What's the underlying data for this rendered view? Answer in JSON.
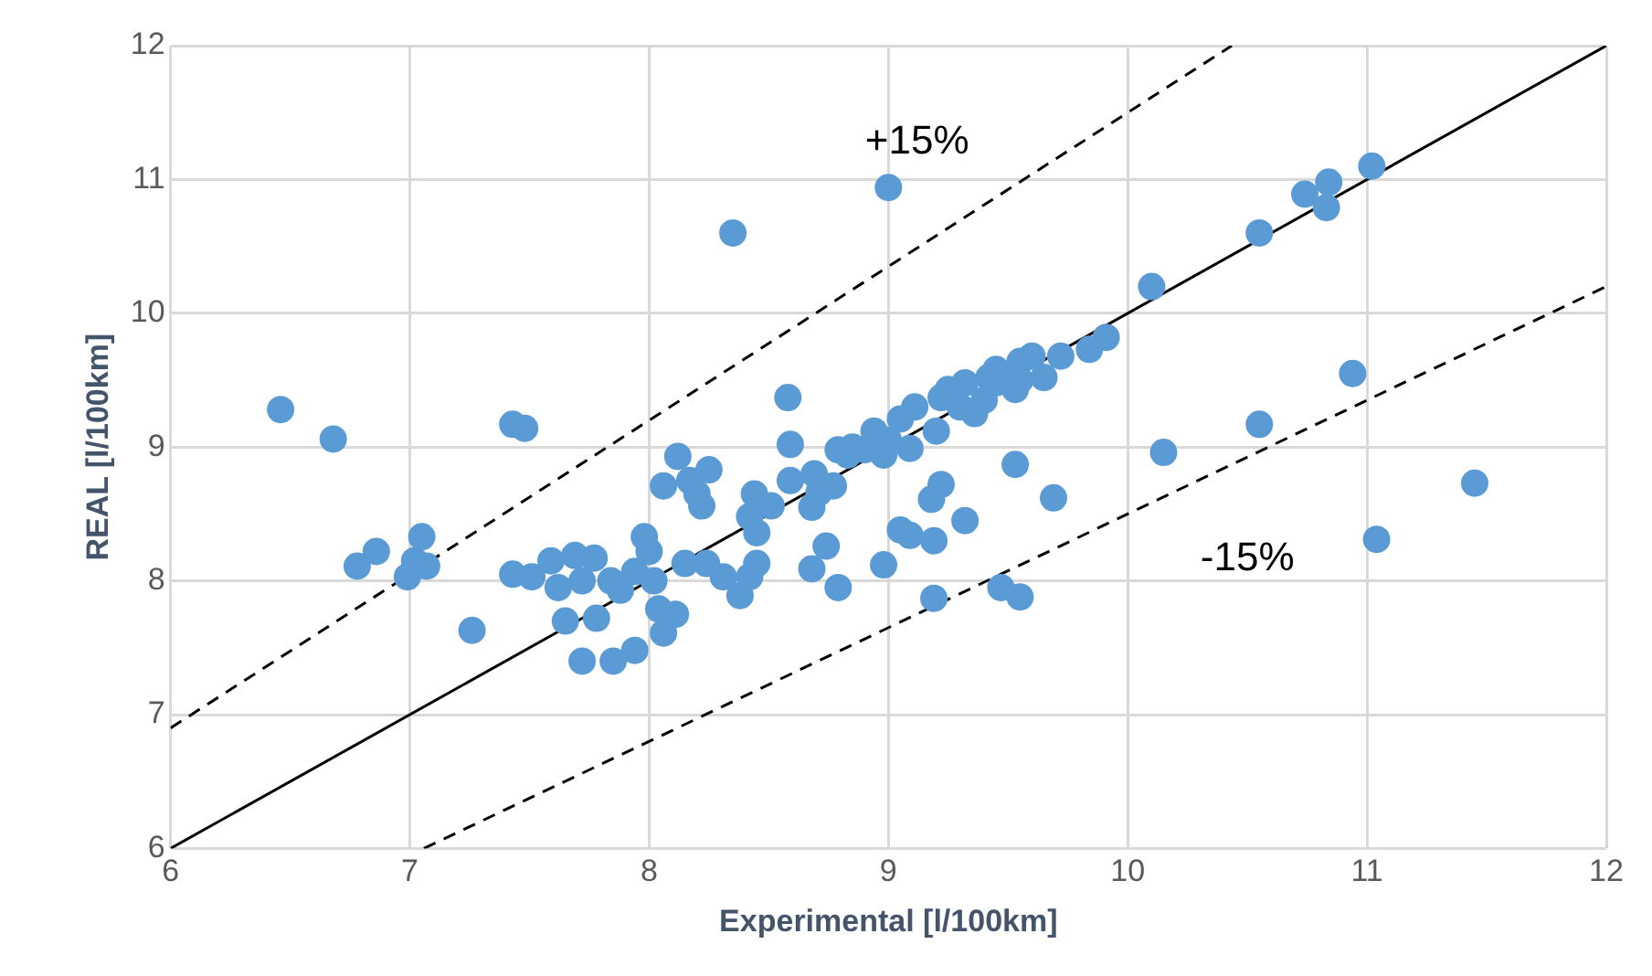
{
  "chart_data": {
    "type": "scatter",
    "xlabel": "Experimental [l/100km]",
    "ylabel": "REAL [l/100km]",
    "xlim": [
      6,
      12
    ],
    "ylim": [
      6,
      12
    ],
    "xticks": [
      6,
      7,
      8,
      9,
      10,
      11,
      12
    ],
    "yticks": [
      6,
      7,
      8,
      9,
      10,
      11,
      12
    ],
    "grid": true,
    "legend": false,
    "series": [
      {
        "type": "scatter",
        "color": "#5b9bd5",
        "marker": "circle",
        "x": [
          6.46,
          6.68,
          6.78,
          6.86,
          6.99,
          7.02,
          7.05,
          7.07,
          7.26,
          7.43,
          7.48,
          7.43,
          7.51,
          7.59,
          7.62,
          7.65,
          7.69,
          7.72,
          7.72,
          7.77,
          7.78,
          7.85,
          7.84,
          7.88,
          7.94,
          7.94,
          7.98,
          8.0,
          8.02,
          8.04,
          8.06,
          8.06,
          8.11,
          8.12,
          8.17,
          8.15,
          8.2,
          8.22,
          8.25,
          8.24,
          8.31,
          8.35,
          8.38,
          8.42,
          8.45,
          8.44,
          8.42,
          8.45,
          8.51,
          8.58,
          8.59,
          8.59,
          8.68,
          8.68,
          8.69,
          8.71,
          8.74,
          8.77,
          8.79,
          8.79,
          8.83,
          8.94,
          8.98,
          8.98,
          9.0,
          9.05,
          9.05,
          9.09,
          9.09,
          9.11,
          9.18,
          9.19,
          9.19,
          9.22,
          9.2,
          9.22,
          9.25,
          9.32,
          9.32,
          9.36,
          9.42,
          9.47,
          9.53,
          9.55,
          9.55,
          9.53,
          9.6,
          9.65,
          9.69,
          9.72,
          9.84,
          9.91,
          10.1,
          10.15,
          10.55,
          10.55,
          10.74,
          10.84,
          10.83,
          10.94,
          11.02,
          11.04,
          11.45,
          9.0,
          9.45,
          9.3,
          9.4,
          8.9,
          8.85,
          9.45,
          9.55
        ],
        "values": [
          9.28,
          9.06,
          8.11,
          8.22,
          8.03,
          8.15,
          8.33,
          8.11,
          7.63,
          9.17,
          9.14,
          8.05,
          8.03,
          8.15,
          7.95,
          7.7,
          8.19,
          8.0,
          7.4,
          8.17,
          7.72,
          7.4,
          8.0,
          7.93,
          7.48,
          8.07,
          8.33,
          8.22,
          8.0,
          7.79,
          7.61,
          8.71,
          7.75,
          8.93,
          8.75,
          8.13,
          8.65,
          8.56,
          8.83,
          8.13,
          8.03,
          10.6,
          7.89,
          8.03,
          8.13,
          8.65,
          8.48,
          8.36,
          8.56,
          9.37,
          9.02,
          8.75,
          8.55,
          8.09,
          8.8,
          8.66,
          8.26,
          8.71,
          7.95,
          8.98,
          8.94,
          9.12,
          8.94,
          8.12,
          10.94,
          9.21,
          8.38,
          8.34,
          8.99,
          9.3,
          8.61,
          8.3,
          7.87,
          8.72,
          9.12,
          9.37,
          9.43,
          8.45,
          9.48,
          9.25,
          9.52,
          7.95,
          8.87,
          7.88,
          9.64,
          9.43,
          9.68,
          9.52,
          8.62,
          9.68,
          9.73,
          9.82,
          10.2,
          8.96,
          10.6,
          9.17,
          10.89,
          10.98,
          10.79,
          9.55,
          11.1,
          8.31,
          8.73,
          9.05,
          9.48,
          9.3,
          9.35,
          8.98,
          9.0,
          9.58,
          9.5
        ]
      },
      {
        "type": "line",
        "color": "#000000",
        "marker": "none",
        "line_style": "solid",
        "x": [
          6,
          12
        ],
        "values": [
          6,
          12
        ]
      },
      {
        "type": "line",
        "color": "#000000",
        "marker": "none",
        "line_style": "dashed",
        "x": [
          6,
          10.4348
        ],
        "values": [
          6.9,
          12
        ]
      },
      {
        "type": "line",
        "color": "#000000",
        "marker": "none",
        "line_style": "dashed",
        "x": [
          7.0588,
          12
        ],
        "values": [
          6,
          10.2
        ]
      }
    ],
    "annotations": [
      "+15%",
      "-15%"
    ]
  }
}
